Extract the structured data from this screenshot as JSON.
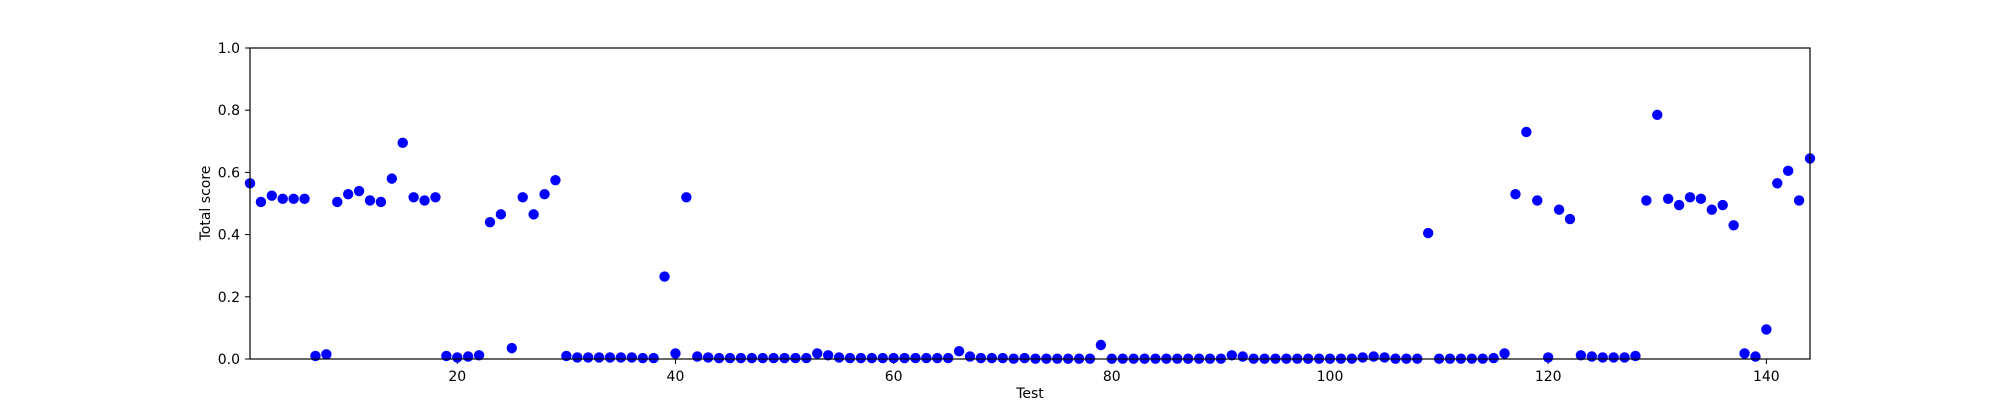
{
  "chart_data": {
    "type": "scatter",
    "title": "",
    "xlabel": "Test",
    "ylabel": "Total score",
    "xlim": [
      1,
      144
    ],
    "ylim": [
      0.0,
      1.0
    ],
    "grid": false,
    "legend": "none",
    "marker_color": "#0000ff",
    "x_ticks": [
      20,
      40,
      60,
      80,
      100,
      120,
      140
    ],
    "x_tick_labels": [
      "20",
      "40",
      "60",
      "80",
      "100",
      "120",
      "140"
    ],
    "y_ticks": [
      0.0,
      0.2,
      0.4,
      0.6,
      0.8,
      1.0
    ],
    "y_tick_labels": [
      "0.0",
      "0.2",
      "0.4",
      "0.6",
      "0.8",
      "1.0"
    ],
    "series": [
      {
        "x": [
          1,
          2,
          3,
          4,
          5,
          6,
          7,
          8,
          9,
          10,
          11,
          12,
          13,
          14,
          15,
          16,
          17,
          18,
          19,
          20,
          21,
          22,
          23,
          24,
          25,
          26,
          27,
          28,
          29,
          30,
          31,
          32,
          33,
          34,
          35,
          36,
          37,
          38,
          39,
          40,
          41,
          42,
          43,
          44,
          45,
          46,
          47,
          48,
          49,
          50,
          51,
          52,
          53,
          54,
          55,
          56,
          57,
          58,
          59,
          60,
          61,
          62,
          63,
          64,
          65,
          66,
          67,
          68,
          69,
          70,
          71,
          72,
          73,
          74,
          75,
          76,
          77,
          78,
          79,
          80,
          81,
          82,
          83,
          84,
          85,
          86,
          87,
          88,
          89,
          90,
          91,
          92,
          93,
          94,
          95,
          96,
          97,
          98,
          99,
          100,
          101,
          102,
          103,
          104,
          105,
          106,
          107,
          108,
          109,
          110,
          111,
          112,
          113,
          114,
          115,
          116,
          117,
          118,
          119,
          120,
          121,
          122,
          123,
          124,
          125,
          126,
          127,
          128,
          129,
          130,
          131,
          132,
          133,
          134,
          135,
          136,
          137,
          138,
          139,
          140,
          141,
          142,
          143,
          144
        ],
        "y": [
          0.565,
          0.505,
          0.525,
          0.515,
          0.515,
          0.515,
          0.01,
          0.015,
          0.505,
          0.53,
          0.54,
          0.51,
          0.505,
          0.58,
          0.695,
          0.52,
          0.51,
          0.52,
          0.01,
          0.005,
          0.008,
          0.012,
          0.44,
          0.465,
          0.035,
          0.52,
          0.465,
          0.53,
          0.575,
          0.01,
          0.005,
          0.005,
          0.005,
          0.005,
          0.005,
          0.005,
          0.003,
          0.003,
          0.265,
          0.018,
          0.52,
          0.008,
          0.005,
          0.003,
          0.003,
          0.003,
          0.003,
          0.003,
          0.003,
          0.003,
          0.003,
          0.003,
          0.018,
          0.012,
          0.005,
          0.003,
          0.003,
          0.003,
          0.003,
          0.003,
          0.003,
          0.003,
          0.003,
          0.003,
          0.003,
          0.025,
          0.008,
          0.003,
          0.003,
          0.003,
          0.001,
          0.003,
          0.001,
          0.001,
          0.001,
          0.001,
          0.001,
          0.001,
          0.045,
          0.001,
          0.001,
          0.001,
          0.001,
          0.001,
          0.001,
          0.001,
          0.001,
          0.001,
          0.001,
          0.001,
          0.012,
          0.008,
          0.001,
          0.001,
          0.001,
          0.001,
          0.001,
          0.001,
          0.001,
          0.001,
          0.001,
          0.001,
          0.005,
          0.008,
          0.005,
          0.001,
          0.001,
          0.001,
          0.405,
          0.001,
          0.001,
          0.001,
          0.001,
          0.001,
          0.003,
          0.018,
          0.53,
          0.73,
          0.51,
          0.005,
          0.48,
          0.45,
          0.012,
          0.008,
          0.005,
          0.005,
          0.005,
          0.01,
          0.51,
          0.785,
          0.515,
          0.495,
          0.52,
          0.515,
          0.48,
          0.495,
          0.43,
          0.018,
          0.008,
          0.095,
          0.565,
          0.605,
          0.51,
          0.645
        ]
      }
    ]
  }
}
